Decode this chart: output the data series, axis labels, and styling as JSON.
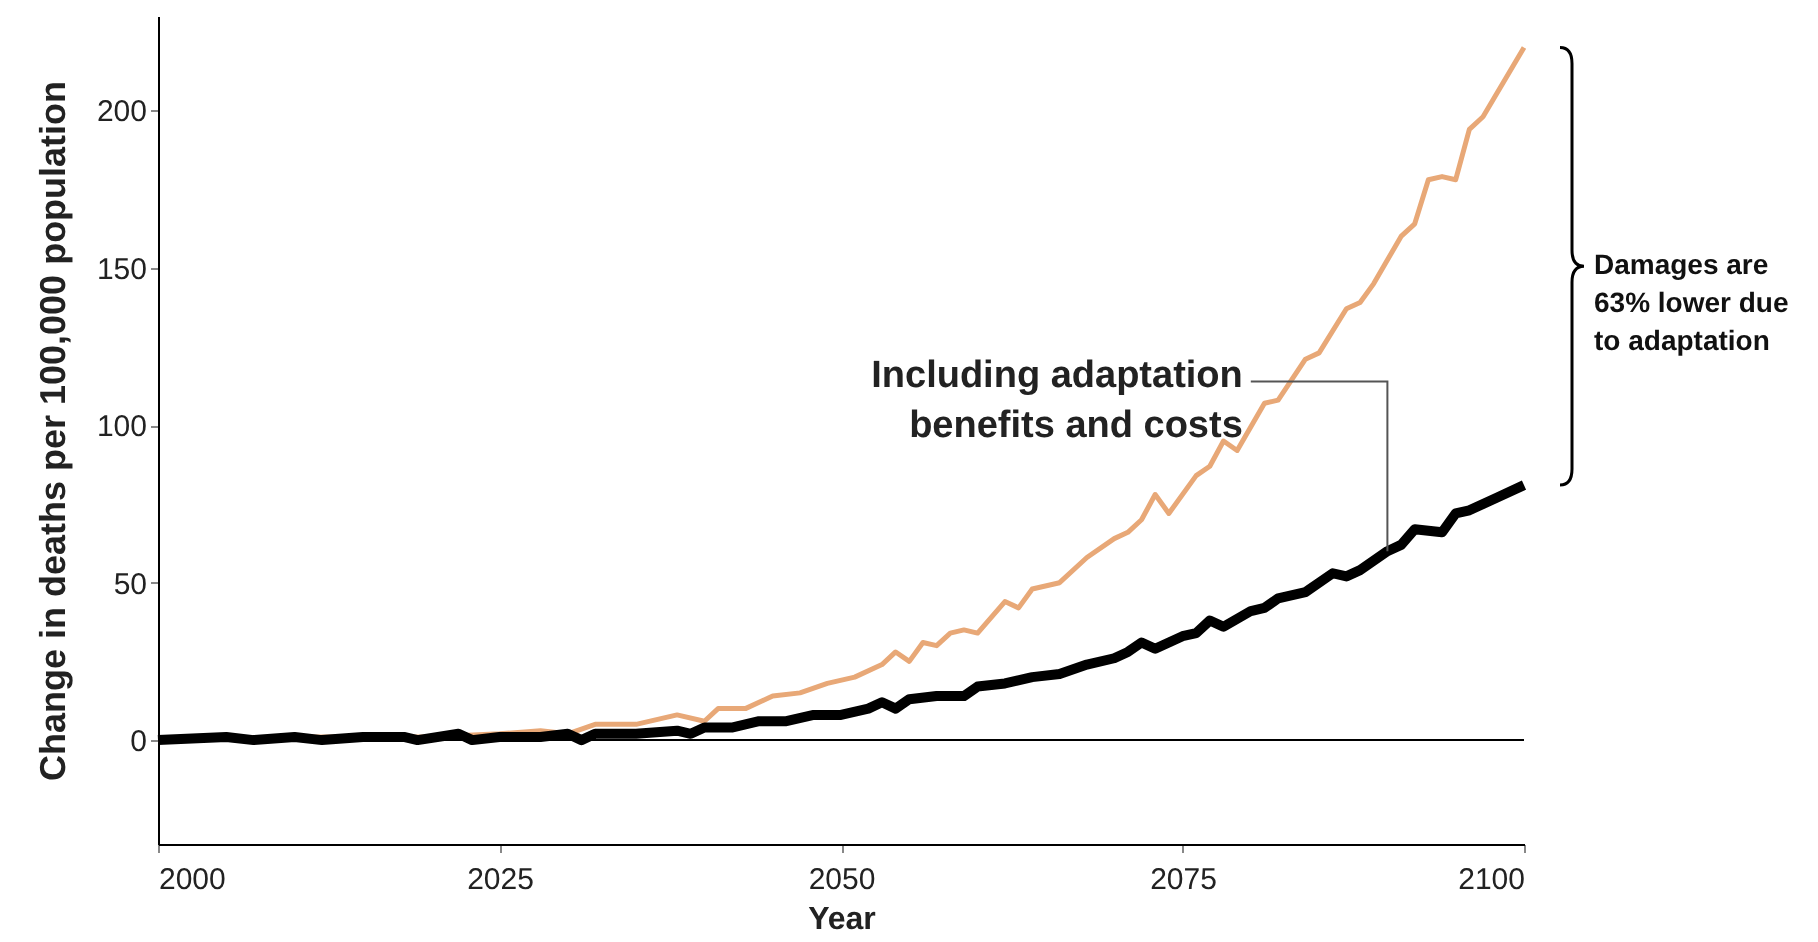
{
  "chart_data": {
    "type": "line",
    "xlabel": "Year",
    "ylabel": "Change in deaths per 100,000 population",
    "xlim": [
      2000,
      2100
    ],
    "xticks": [
      2000,
      2025,
      2050,
      2075,
      2100
    ],
    "ylim": [
      -33,
      230
    ],
    "yticks": [
      0,
      50,
      100,
      150,
      200
    ],
    "grid": false,
    "series": [
      {
        "color": "#e8a877",
        "x": [
          2000,
          2010,
          2020,
          2025,
          2028,
          2030,
          2032,
          2035,
          2038,
          2040,
          2041,
          2043,
          2045,
          2047,
          2049,
          2051,
          2053,
          2054,
          2055,
          2056,
          2057,
          2058,
          2059,
          2060,
          2062,
          2063,
          2064,
          2066,
          2068,
          2070,
          2071,
          2072,
          2073,
          2074,
          2076,
          2077,
          2078,
          2079,
          2081,
          2082,
          2084,
          2085,
          2087,
          2088,
          2089,
          2091,
          2092,
          2093,
          2094,
          2095,
          2096,
          2097,
          2100
        ],
        "values": [
          0,
          1,
          1,
          2,
          3,
          2,
          5,
          5,
          8,
          6,
          10,
          10,
          14,
          15,
          18,
          20,
          24,
          28,
          25,
          31,
          30,
          34,
          35,
          34,
          44,
          42,
          48,
          50,
          58,
          64,
          66,
          70,
          78,
          72,
          84,
          87,
          95,
          92,
          107,
          108,
          121,
          123,
          137,
          139,
          145,
          160,
          164,
          178,
          179,
          178,
          194,
          198,
          220
        ]
      },
      {
        "name": "Including adaptation\nbenefits and costs",
        "color": "#000000",
        "x": [
          2000,
          2005,
          2007,
          2010,
          2012,
          2015,
          2018,
          2019,
          2022,
          2023,
          2025,
          2028,
          2030,
          2031,
          2032,
          2035,
          2038,
          2039,
          2040,
          2042,
          2044,
          2046,
          2048,
          2050,
          2052,
          2053,
          2054,
          2055,
          2057,
          2059,
          2060,
          2062,
          2064,
          2066,
          2068,
          2070,
          2071,
          2072,
          2073,
          2075,
          2076,
          2077,
          2078,
          2080,
          2081,
          2082,
          2084,
          2086,
          2087,
          2088,
          2090,
          2091,
          2092,
          2094,
          2095,
          2096,
          2098,
          2100
        ],
        "values": [
          0,
          1,
          0,
          1,
          0,
          1,
          1,
          0,
          2,
          0,
          1,
          1,
          2,
          0,
          2,
          2,
          3,
          2,
          4,
          4,
          6,
          6,
          8,
          8,
          10,
          12,
          10,
          13,
          14,
          14,
          17,
          18,
          20,
          21,
          24,
          26,
          28,
          31,
          29,
          33,
          34,
          38,
          36,
          41,
          42,
          45,
          47,
          53,
          52,
          54,
          60,
          62,
          67,
          66,
          72,
          73,
          77,
          81
        ]
      }
    ],
    "ref_lines": [
      {
        "axis": "y",
        "value": 0,
        "color": "#000000"
      }
    ],
    "annotations": [
      "Damages are\n63% lower due\nto adaptation"
    ]
  }
}
